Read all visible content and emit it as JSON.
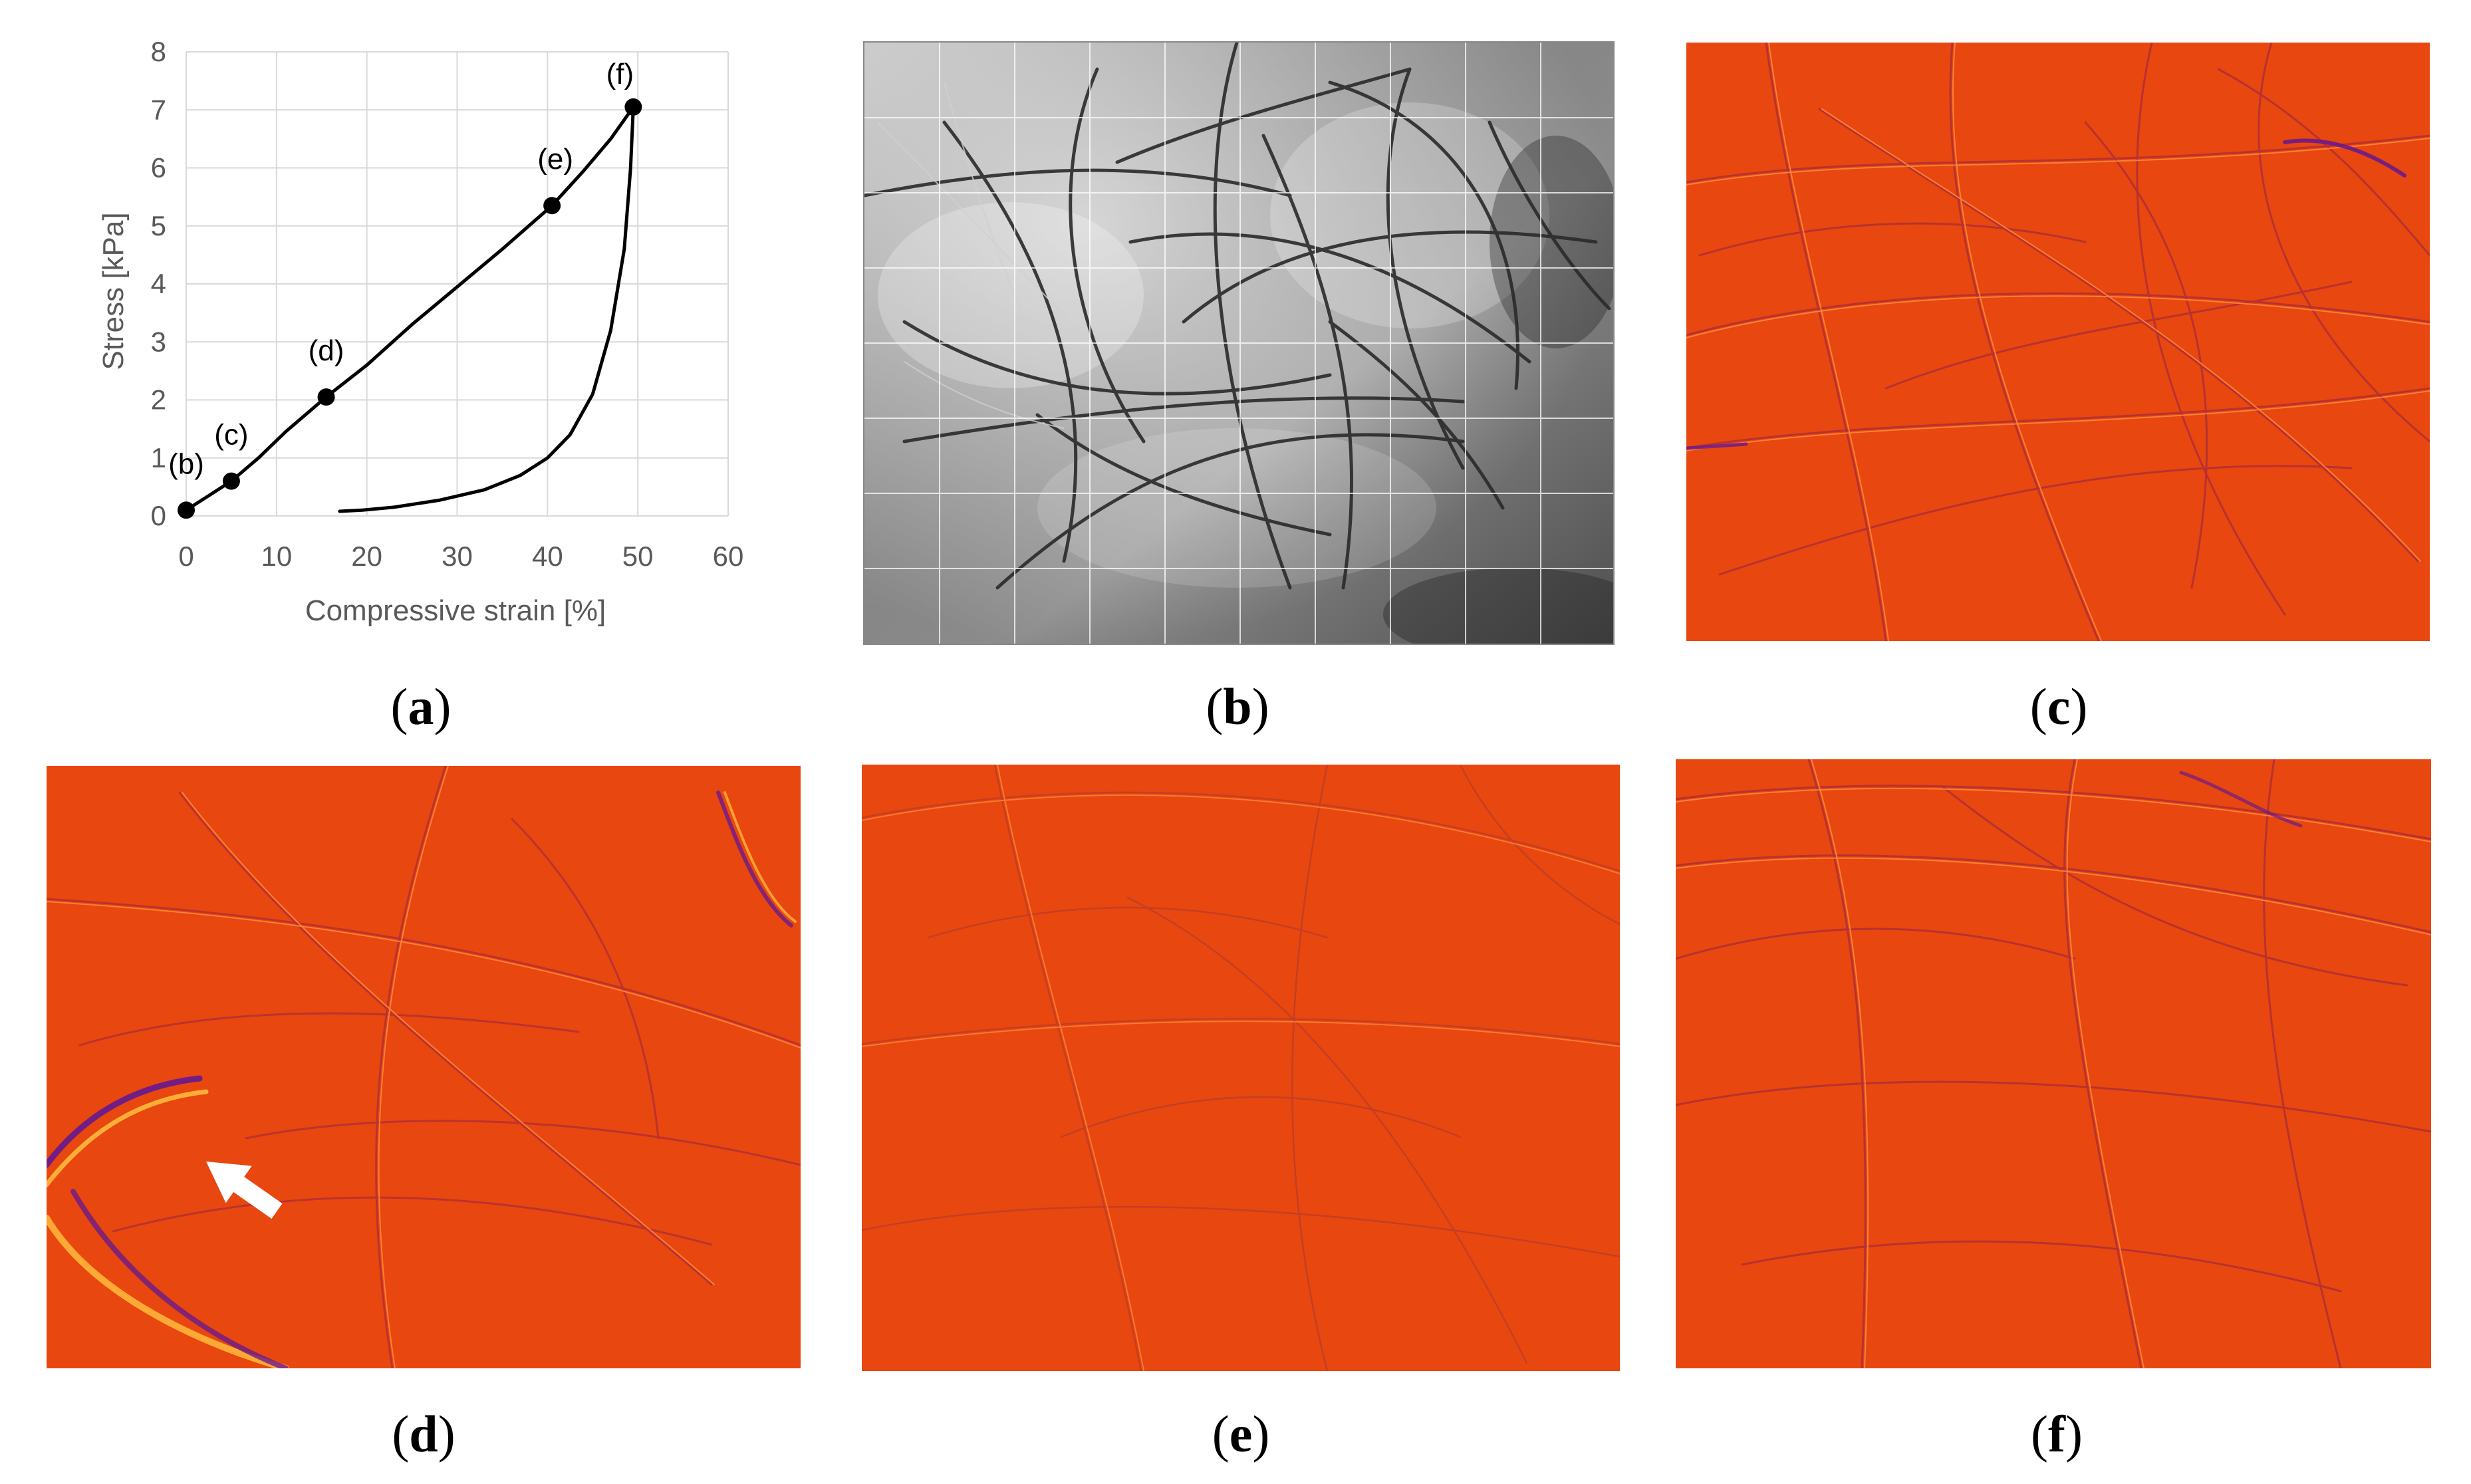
{
  "figure": {
    "captions": {
      "a": {
        "open": "(",
        "letter": "a",
        "close": ")"
      },
      "b": {
        "open": "(",
        "letter": "b",
        "close": ")"
      },
      "c": {
        "open": "(",
        "letter": "c",
        "close": ")"
      },
      "d": {
        "open": "(",
        "letter": "d",
        "close": ")"
      },
      "e": {
        "open": "(",
        "letter": "e",
        "close": ")"
      },
      "f": {
        "open": "(",
        "letter": "f",
        "close": ")"
      }
    },
    "colors": {
      "heatmap_bg": "#e8470f",
      "fiber_dark": "#9a1f4a",
      "fiber_light": "#ff7a2a",
      "highlight_purple": "#6b1a8c",
      "highlight_yellow": "#ffb43a",
      "photo_bg": "#b9b9b9",
      "photo_fiber": "#2a2a2a",
      "chart_line": "#000000",
      "grid": "#d9d9d9",
      "tick_text": "#595959"
    },
    "annotations": {
      "d_arrow": "white-arrow-icon"
    }
  },
  "chart_data": {
    "type": "line",
    "xlabel": "Compressive strain [%]",
    "ylabel": "Stress [kPa]",
    "xlim": [
      0,
      60
    ],
    "ylim": [
      0,
      8
    ],
    "xticks": [
      0,
      10,
      20,
      30,
      40,
      50,
      60
    ],
    "yticks": [
      0,
      1,
      2,
      3,
      4,
      5,
      6,
      7,
      8
    ],
    "grid": true,
    "series": [
      {
        "x": [
          0,
          2,
          5,
          8,
          11,
          15.5,
          20,
          25,
          30,
          35,
          40.5,
          44,
          47,
          49.5
        ],
        "y": [
          0.1,
          0.3,
          0.6,
          1.0,
          1.45,
          2.05,
          2.6,
          3.3,
          3.95,
          4.6,
          5.35,
          5.95,
          6.5,
          7.05
        ]
      },
      {
        "x": [
          49.5,
          49.2,
          48.5,
          47,
          45,
          42.5,
          40,
          37,
          33,
          28,
          23,
          19.5,
          17
        ],
        "y": [
          7.05,
          6.0,
          4.6,
          3.2,
          2.1,
          1.4,
          1.0,
          0.7,
          0.45,
          0.27,
          0.15,
          0.1,
          0.08
        ]
      }
    ],
    "points": [
      {
        "label": "(b)",
        "x": 0,
        "y": 0.1
      },
      {
        "label": "(c)",
        "x": 5,
        "y": 0.6
      },
      {
        "label": "(d)",
        "x": 15.5,
        "y": 2.05
      },
      {
        "label": "(e)",
        "x": 40.5,
        "y": 5.35
      },
      {
        "label": "(f)",
        "x": 49.5,
        "y": 7.05
      }
    ]
  }
}
